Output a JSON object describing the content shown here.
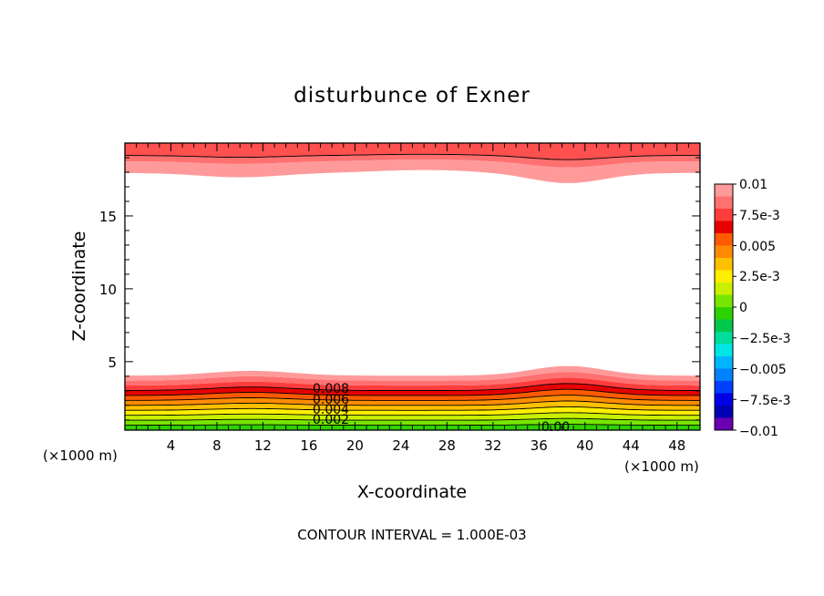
{
  "chart_data": {
    "type": "contour",
    "title": "disturbunce of Exner",
    "xlabel": "X-coordinate",
    "ylabel": "Z-coordinate",
    "x_unit": "(×1000 m)",
    "x_unit_right": "(×1000 m)",
    "xlim": [
      0,
      50
    ],
    "ylim": [
      0.3,
      20
    ],
    "xticks": [
      4,
      8,
      12,
      16,
      20,
      24,
      28,
      32,
      36,
      40,
      44,
      48
    ],
    "yticks": [
      5,
      10,
      15
    ],
    "colorbar": {
      "labels": [
        "0.01",
        "7.5e-3",
        "0.005",
        "2.5e-3",
        "0",
        "−2.5e-3",
        "−0.005",
        "−7.5e-3",
        "−0.01"
      ],
      "colors": [
        "#ff9a9a",
        "#ff7070",
        "#ff3c3c",
        "#e60000",
        "#ff5a00",
        "#ff8c00",
        "#ffc000",
        "#ffee00",
        "#c8f000",
        "#78e600",
        "#2ed200",
        "#00c84a",
        "#00dc9a",
        "#00e6e6",
        "#00b4ff",
        "#0082ff",
        "#0040ff",
        "#0000e6",
        "#0000b4",
        "#6a00b0"
      ]
    },
    "contour_labels": [
      "0.008",
      "0.006",
      "0.004",
      "0.002",
      "0.00"
    ],
    "annotation": "CONTOUR INTERVAL = 1.000E-03"
  }
}
